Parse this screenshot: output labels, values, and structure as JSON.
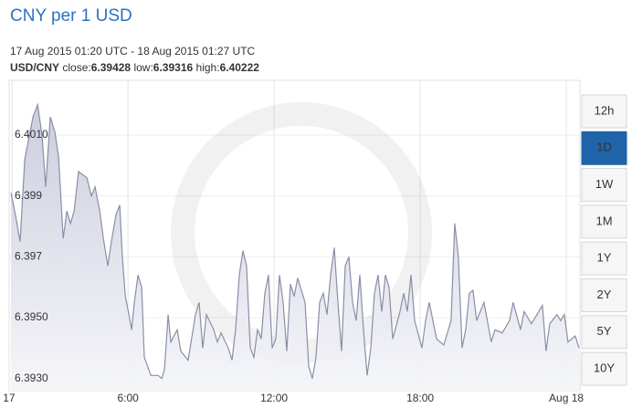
{
  "title": "CNY per 1 USD",
  "date_range": "17 Aug 2015 01:20 UTC - 18 Aug 2015 01:27 UTC",
  "summary": {
    "pair": "USD/CNY",
    "items": [
      {
        "label": "close:",
        "value": "6.39428"
      },
      {
        "label": "low:",
        "value": "6.39316"
      },
      {
        "label": "high:",
        "value": "6.40222"
      }
    ]
  },
  "range_buttons": [
    "12h",
    "1D",
    "1W",
    "1M",
    "1Y",
    "2Y",
    "5Y",
    "10Y"
  ],
  "active_button": "1D",
  "chart_data": {
    "type": "area",
    "color": "#8a8ea8",
    "fill": "#c9cbdb",
    "grid": true,
    "xlim": [
      1.12,
      24.56
    ],
    "ylim": [
      6.3926,
      6.4028
    ],
    "xticks": [
      {
        "value": 1.24,
        "label": "17"
      },
      {
        "value": 6,
        "label": "6:00"
      },
      {
        "value": 12,
        "label": "12:00"
      },
      {
        "value": 18,
        "label": "18:00"
      },
      {
        "value": 24,
        "label": "Aug 18"
      }
    ],
    "yticks": [
      {
        "value": 6.393,
        "label": "6.3930"
      },
      {
        "value": 6.395,
        "label": "6.3950"
      },
      6.397,
      6.399,
      {
        "value": 6.401,
        "label": "6.4010"
      }
    ],
    "x": [
      1.2,
      1.42,
      1.57,
      1.76,
      2.1,
      2.29,
      2.47,
      2.62,
      2.81,
      3.0,
      3.15,
      3.34,
      3.49,
      3.64,
      3.79,
      3.97,
      4.31,
      4.5,
      4.65,
      4.84,
      4.99,
      5.17,
      5.32,
      5.51,
      5.66,
      5.77,
      5.89,
      6.04,
      6.15,
      6.26,
      6.41,
      6.56,
      6.67,
      6.94,
      7.24,
      7.39,
      7.5,
      7.65,
      7.76,
      8.02,
      8.17,
      8.47,
      8.77,
      8.92,
      9.07,
      9.22,
      9.52,
      9.67,
      9.82,
      10.12,
      10.27,
      10.42,
      10.57,
      10.72,
      10.87,
      11.02,
      11.17,
      11.32,
      11.47,
      11.62,
      11.77,
      11.92,
      12.07,
      12.22,
      12.37,
      12.52,
      12.67,
      12.82,
      12.97,
      13.27,
      13.42,
      13.57,
      13.72,
      13.87,
      14.02,
      14.17,
      14.32,
      14.47,
      14.62,
      14.77,
      14.92,
      15.07,
      15.22,
      15.37,
      15.52,
      15.67,
      15.82,
      15.97,
      16.12,
      16.27,
      16.42,
      16.57,
      16.72,
      16.87,
      17.17,
      17.32,
      17.47,
      17.62,
      17.77,
      18.07,
      18.22,
      18.37,
      18.67,
      18.97,
      19.27,
      19.42,
      19.57,
      19.72,
      19.87,
      20.02,
      20.17,
      20.32,
      20.62,
      20.92,
      21.07,
      21.37,
      21.67,
      21.82,
      22.12,
      22.27,
      22.57,
      22.87,
      23.02,
      23.17,
      23.32,
      23.62,
      23.77,
      23.92,
      24.07,
      24.37,
      24.52
    ],
    "values": [
      6.3991,
      6.3982,
      6.3975,
      6.4002,
      6.4016,
      6.402,
      6.401,
      6.3993,
      6.4016,
      6.4011,
      6.4003,
      6.3976,
      6.3985,
      6.3981,
      6.3985,
      6.3998,
      6.3996,
      6.399,
      6.3993,
      6.3985,
      6.3976,
      6.3967,
      6.3975,
      6.3984,
      6.3987,
      6.397,
      6.3957,
      6.3951,
      6.3946,
      6.3955,
      6.3964,
      6.396,
      6.3937,
      6.3931,
      6.3931,
      6.393,
      6.3933,
      6.3951,
      6.3942,
      6.3946,
      6.3939,
      6.3936,
      6.3951,
      6.3955,
      6.394,
      6.3951,
      6.3946,
      6.3942,
      6.3945,
      6.394,
      6.3936,
      6.3946,
      6.3964,
      6.3972,
      6.3967,
      6.394,
      6.3937,
      6.3946,
      6.3943,
      6.3958,
      6.3964,
      6.394,
      6.3943,
      6.3964,
      6.3955,
      6.3939,
      6.3961,
      6.3957,
      6.3963,
      6.3955,
      6.3934,
      6.393,
      6.3937,
      6.3955,
      6.3958,
      6.3951,
      6.3964,
      6.3973,
      6.3955,
      6.3939,
      6.3967,
      6.397,
      6.3955,
      6.3949,
      6.3964,
      6.3946,
      6.3931,
      6.394,
      6.3958,
      6.3964,
      6.3952,
      6.3964,
      6.396,
      6.3943,
      6.3952,
      6.3958,
      6.3952,
      6.3964,
      6.3949,
      6.394,
      6.3949,
      6.3955,
      6.3943,
      6.3941,
      6.3949,
      6.3981,
      6.397,
      6.394,
      6.3946,
      6.3958,
      6.3959,
      6.3949,
      6.3955,
      6.3942,
      6.3946,
      6.3945,
      6.3949,
      6.3955,
      6.3946,
      6.3952,
      6.3948,
      6.3952,
      6.3954,
      6.3939,
      6.3948,
      6.3951,
      6.3949,
      6.3951,
      6.3942,
      6.3944,
      6.394
    ]
  }
}
